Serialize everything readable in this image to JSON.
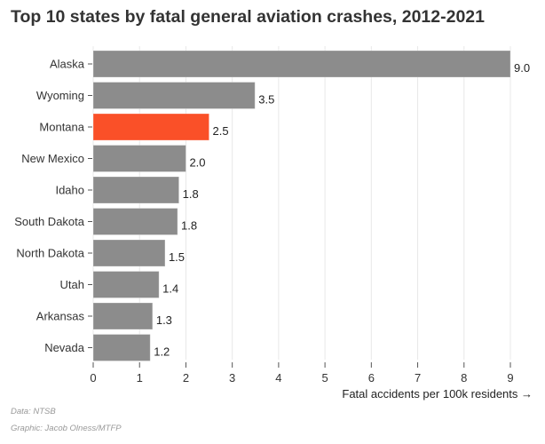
{
  "chart_data": {
    "type": "bar",
    "orientation": "horizontal",
    "title": "Top 10 states by fatal general aviation crashes, 2012-2021",
    "xlabel": "Fatal accidents per 100k residents →",
    "ylabel": "",
    "xlim": [
      0,
      9
    ],
    "xticks": [
      "0",
      "1",
      "2",
      "3",
      "4",
      "5",
      "6",
      "7",
      "8",
      "9"
    ],
    "grid": "vertical",
    "categories": [
      "Alaska",
      "Wyoming",
      "Montana",
      "New Mexico",
      "Idaho",
      "South Dakota",
      "North Dakota",
      "Utah",
      "Arkansas",
      "Nevada"
    ],
    "values": [
      9.0,
      3.49,
      2.5,
      2.0,
      1.85,
      1.82,
      1.55,
      1.42,
      1.28,
      1.23
    ],
    "labels": [
      "9.0",
      "3.5",
      "2.5",
      "2.0",
      "1.8",
      "1.8",
      "1.5",
      "1.4",
      "1.3",
      "1.2"
    ],
    "highlight": "Montana",
    "colors": {
      "default": "#8c8c8c",
      "highlight": "#fa5028",
      "grid": "#e8e8e8"
    }
  },
  "footer": {
    "source": "Data: NTSB",
    "credit": "Graphic: Jacob Olness/MTFP"
  }
}
